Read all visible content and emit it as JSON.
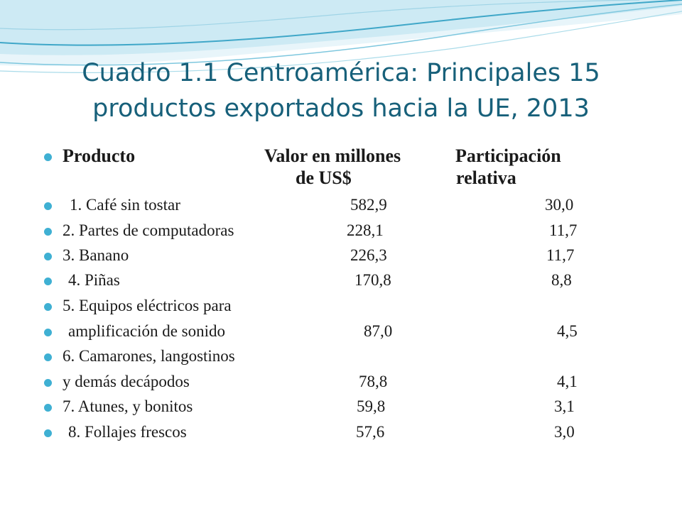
{
  "slide": {
    "title_line1": "Cuadro 1.1 Centroamérica: Principales 15",
    "title_line2": "productos exportados  hacia la UE, 2013",
    "header": {
      "producto": "Producto",
      "valor_line1": "Valor en millones",
      "valor_line2": "de US$",
      "participacion_line1": "Participación",
      "participacion_line2": "relativa"
    },
    "rows": [
      {
        "producto": "1.  Café sin tostar",
        "valor": "582,9",
        "participacion": "30,0"
      },
      {
        "producto": "2.  Partes de computadoras",
        "valor": "228,1",
        "participacion": "11,7"
      },
      {
        "producto": "3.  Banano",
        "valor": "226,3",
        "participacion": "11,7"
      },
      {
        "producto": "4.  Piñas",
        "valor": "170,8",
        "participacion": "8,8"
      },
      {
        "producto": "5.  Equipos eléctricos para",
        "valor": "",
        "participacion": ""
      },
      {
        "producto": "amplificación de sonido",
        "valor": "87,0",
        "participacion": "4,5"
      },
      {
        "producto": "6.  Camarones, langostinos",
        "valor": "",
        "participacion": ""
      },
      {
        "producto": "y demás decápodos",
        "valor": "78,8",
        "participacion": "4,1"
      },
      {
        "producto": "7.  Atunes, y bonitos",
        "valor": "59,8",
        "participacion": "3,1"
      },
      {
        "producto": "8.  Follajes frescos",
        "valor": "57,6",
        "participacion": "3,0"
      }
    ]
  },
  "colors": {
    "title": "#17607a",
    "bullet": "#3fb0d3",
    "wave_dark": "#3fa7c8",
    "wave_light": "#cdeaf4"
  }
}
